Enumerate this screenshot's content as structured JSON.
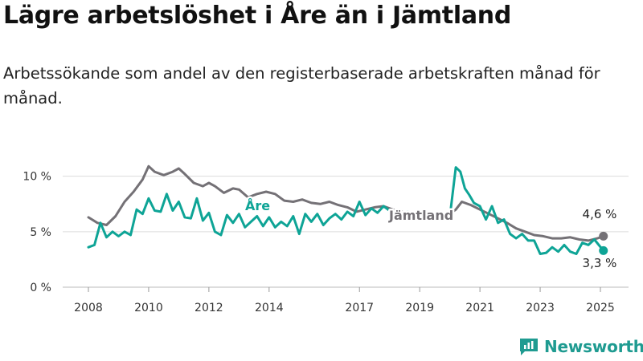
{
  "chart_data": {
    "type": "line",
    "title": "Lägre arbetslöshet i Åre än i Jämtland",
    "subtitle": "Arbetssökande som andel av den registerbaserade arbetskraften månad för månad.",
    "ylim": [
      0,
      12
    ],
    "xlim": [
      2008,
      2025.4
    ],
    "yticks": [
      {
        "value": 0,
        "label": "0 %"
      },
      {
        "value": 5,
        "label": "5 %"
      },
      {
        "value": 10,
        "label": "10 %"
      }
    ],
    "xticks": [
      {
        "value": 2008,
        "label": "2008"
      },
      {
        "value": 2010,
        "label": "2010"
      },
      {
        "value": 2012,
        "label": "2012"
      },
      {
        "value": 2014,
        "label": "2014"
      },
      {
        "value": 2017,
        "label": "2017"
      },
      {
        "value": 2019,
        "label": "2019"
      },
      {
        "value": 2021,
        "label": "2021"
      },
      {
        "value": 2023,
        "label": "2023"
      },
      {
        "value": 2025,
        "label": "2025"
      }
    ],
    "grid": "horizontal",
    "series": [
      {
        "name": "Jämtland",
        "color": "#747176",
        "end_label": "4,6 %",
        "x": [
          2008.0,
          2008.3,
          2008.6,
          2008.9,
          2009.2,
          2009.5,
          2009.8,
          2010.0,
          2010.2,
          2010.5,
          2010.8,
          2011.0,
          2011.2,
          2011.5,
          2011.8,
          2012.0,
          2012.2,
          2012.5,
          2012.8,
          2013.0,
          2013.3,
          2013.6,
          2013.9,
          2014.2,
          2014.5,
          2014.8,
          2015.1,
          2015.4,
          2015.7,
          2016.0,
          2016.3,
          2016.6,
          2016.9,
          2017.2,
          2017.5,
          2017.8,
          2018.1,
          2018.4,
          2018.7,
          2019.0,
          2019.3,
          2019.6,
          2019.9,
          2020.2,
          2020.4,
          2020.7,
          2021.0,
          2021.3,
          2021.6,
          2021.9,
          2022.2,
          2022.5,
          2022.8,
          2023.1,
          2023.4,
          2023.7,
          2024.0,
          2024.3,
          2024.6,
          2024.9,
          2025.1
        ],
        "values": [
          6.3,
          5.8,
          5.6,
          6.4,
          7.7,
          8.6,
          9.7,
          10.9,
          10.4,
          10.1,
          10.4,
          10.7,
          10.2,
          9.4,
          9.1,
          9.4,
          9.1,
          8.5,
          8.9,
          8.8,
          8.1,
          8.4,
          8.6,
          8.4,
          7.8,
          7.7,
          7.9,
          7.6,
          7.5,
          7.7,
          7.4,
          7.2,
          6.8,
          7.0,
          7.2,
          7.3,
          7.0,
          6.8,
          6.7,
          6.7,
          6.6,
          6.6,
          6.4,
          7.0,
          7.7,
          7.4,
          7.0,
          6.6,
          6.2,
          5.8,
          5.3,
          5.0,
          4.7,
          4.6,
          4.4,
          4.4,
          4.5,
          4.3,
          4.2,
          4.4,
          4.6
        ]
      },
      {
        "name": "Åre",
        "color": "#0ea496",
        "end_label": "3,3 %",
        "x": [
          2008.0,
          2008.2,
          2008.4,
          2008.6,
          2008.8,
          2009.0,
          2009.2,
          2009.4,
          2009.6,
          2009.8,
          2010.0,
          2010.2,
          2010.4,
          2010.6,
          2010.8,
          2011.0,
          2011.2,
          2011.4,
          2011.6,
          2011.8,
          2012.0,
          2012.2,
          2012.4,
          2012.6,
          2012.8,
          2013.0,
          2013.2,
          2013.4,
          2013.6,
          2013.8,
          2014.0,
          2014.2,
          2014.4,
          2014.6,
          2014.8,
          2015.0,
          2015.2,
          2015.4,
          2015.6,
          2015.8,
          2016.0,
          2016.2,
          2016.4,
          2016.6,
          2016.8,
          2017.0,
          2017.2,
          2017.4,
          2017.6,
          2017.8,
          2018.0,
          2018.2,
          2018.4,
          2018.6,
          2018.8,
          2019.0,
          2019.2,
          2019.4,
          2019.6,
          2019.8,
          2020.0,
          2020.2,
          2020.35,
          2020.5,
          2020.65,
          2020.8,
          2021.0,
          2021.2,
          2021.4,
          2021.6,
          2021.8,
          2022.0,
          2022.2,
          2022.4,
          2022.6,
          2022.8,
          2023.0,
          2023.2,
          2023.4,
          2023.6,
          2023.8,
          2024.0,
          2024.2,
          2024.4,
          2024.6,
          2024.8,
          2025.1
        ],
        "values": [
          3.6,
          3.8,
          5.8,
          4.5,
          5.0,
          4.6,
          5.0,
          4.7,
          7.0,
          6.6,
          8.0,
          6.9,
          6.8,
          8.4,
          6.9,
          7.7,
          6.3,
          6.2,
          8.0,
          6.0,
          6.7,
          5.0,
          4.7,
          6.5,
          5.8,
          6.6,
          5.4,
          5.9,
          6.4,
          5.5,
          6.3,
          5.4,
          5.9,
          5.5,
          6.4,
          4.8,
          6.6,
          5.9,
          6.6,
          5.6,
          6.2,
          6.6,
          6.1,
          6.8,
          6.4,
          7.7,
          6.5,
          7.1,
          6.7,
          7.3,
          6.9,
          6.6,
          6.6,
          6.8,
          6.5,
          6.6,
          6.5,
          6.6,
          6.4,
          6.5,
          6.3,
          10.8,
          10.4,
          8.9,
          8.3,
          7.6,
          7.3,
          6.1,
          7.3,
          5.8,
          6.1,
          4.8,
          4.4,
          4.8,
          4.2,
          4.2,
          3.0,
          3.1,
          3.6,
          3.2,
          3.8,
          3.2,
          3.0,
          4.0,
          3.8,
          4.3,
          3.3
        ]
      }
    ]
  },
  "brand": {
    "name": "Newsworthy",
    "color": "#1f9b91"
  }
}
